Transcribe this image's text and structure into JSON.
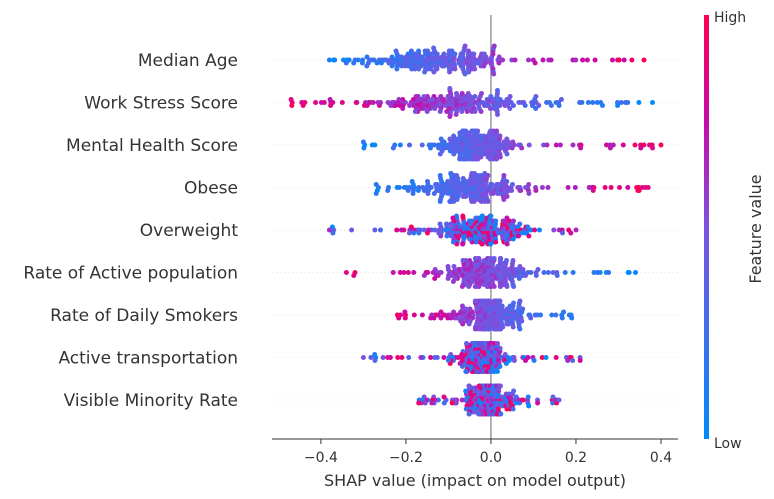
{
  "chart_data": {
    "type": "scatter",
    "subtype": "shap-beeswarm",
    "xlabel": "SHAP value (impact on model output)",
    "xlim": [
      -0.515,
      0.44
    ],
    "xticks": [
      -0.4,
      -0.2,
      0.0,
      0.2,
      0.4
    ],
    "xtick_labels": [
      "−0.4",
      "−0.2",
      "0.0",
      "0.2",
      "0.4"
    ],
    "colorbar": {
      "title": "Feature value",
      "high_label": "High",
      "low_label": "Low",
      "high_color": "#ff0052",
      "low_color": "#008bfb"
    },
    "zero_line_color": "#999999",
    "features": [
      {
        "name": "Median Age",
        "min": -0.38,
        "max": 0.36,
        "core": [
          -0.22,
          -0.02
        ],
        "high_side": "positive"
      },
      {
        "name": "Work Stress Score",
        "min": -0.47,
        "max": 0.38,
        "core": [
          -0.2,
          0.05
        ],
        "high_side": "negative"
      },
      {
        "name": "Mental Health Score",
        "min": -0.3,
        "max": 0.4,
        "core": [
          -0.1,
          0.02
        ],
        "high_side": "positive"
      },
      {
        "name": "Obese",
        "min": -0.27,
        "max": 0.37,
        "core": [
          -0.12,
          0.02
        ],
        "high_side": "positive"
      },
      {
        "name": "Overweight",
        "min": -0.38,
        "max": 0.2,
        "core": [
          -0.08,
          0.05
        ],
        "high_side": "mixed"
      },
      {
        "name": "Rate of Active population",
        "min": -0.34,
        "max": 0.34,
        "core": [
          -0.08,
          0.04
        ],
        "high_side": "negative"
      },
      {
        "name": "Rate of Daily Smokers",
        "min": -0.22,
        "max": 0.19,
        "core": [
          -0.05,
          0.05
        ],
        "high_side": "negative"
      },
      {
        "name": "Active transportation",
        "min": -0.3,
        "max": 0.21,
        "core": [
          -0.06,
          0.01
        ],
        "high_side": "mixed"
      },
      {
        "name": "Visible Minority Rate",
        "min": -0.17,
        "max": 0.16,
        "core": [
          -0.05,
          0.03
        ],
        "high_side": "mixed"
      }
    ]
  }
}
